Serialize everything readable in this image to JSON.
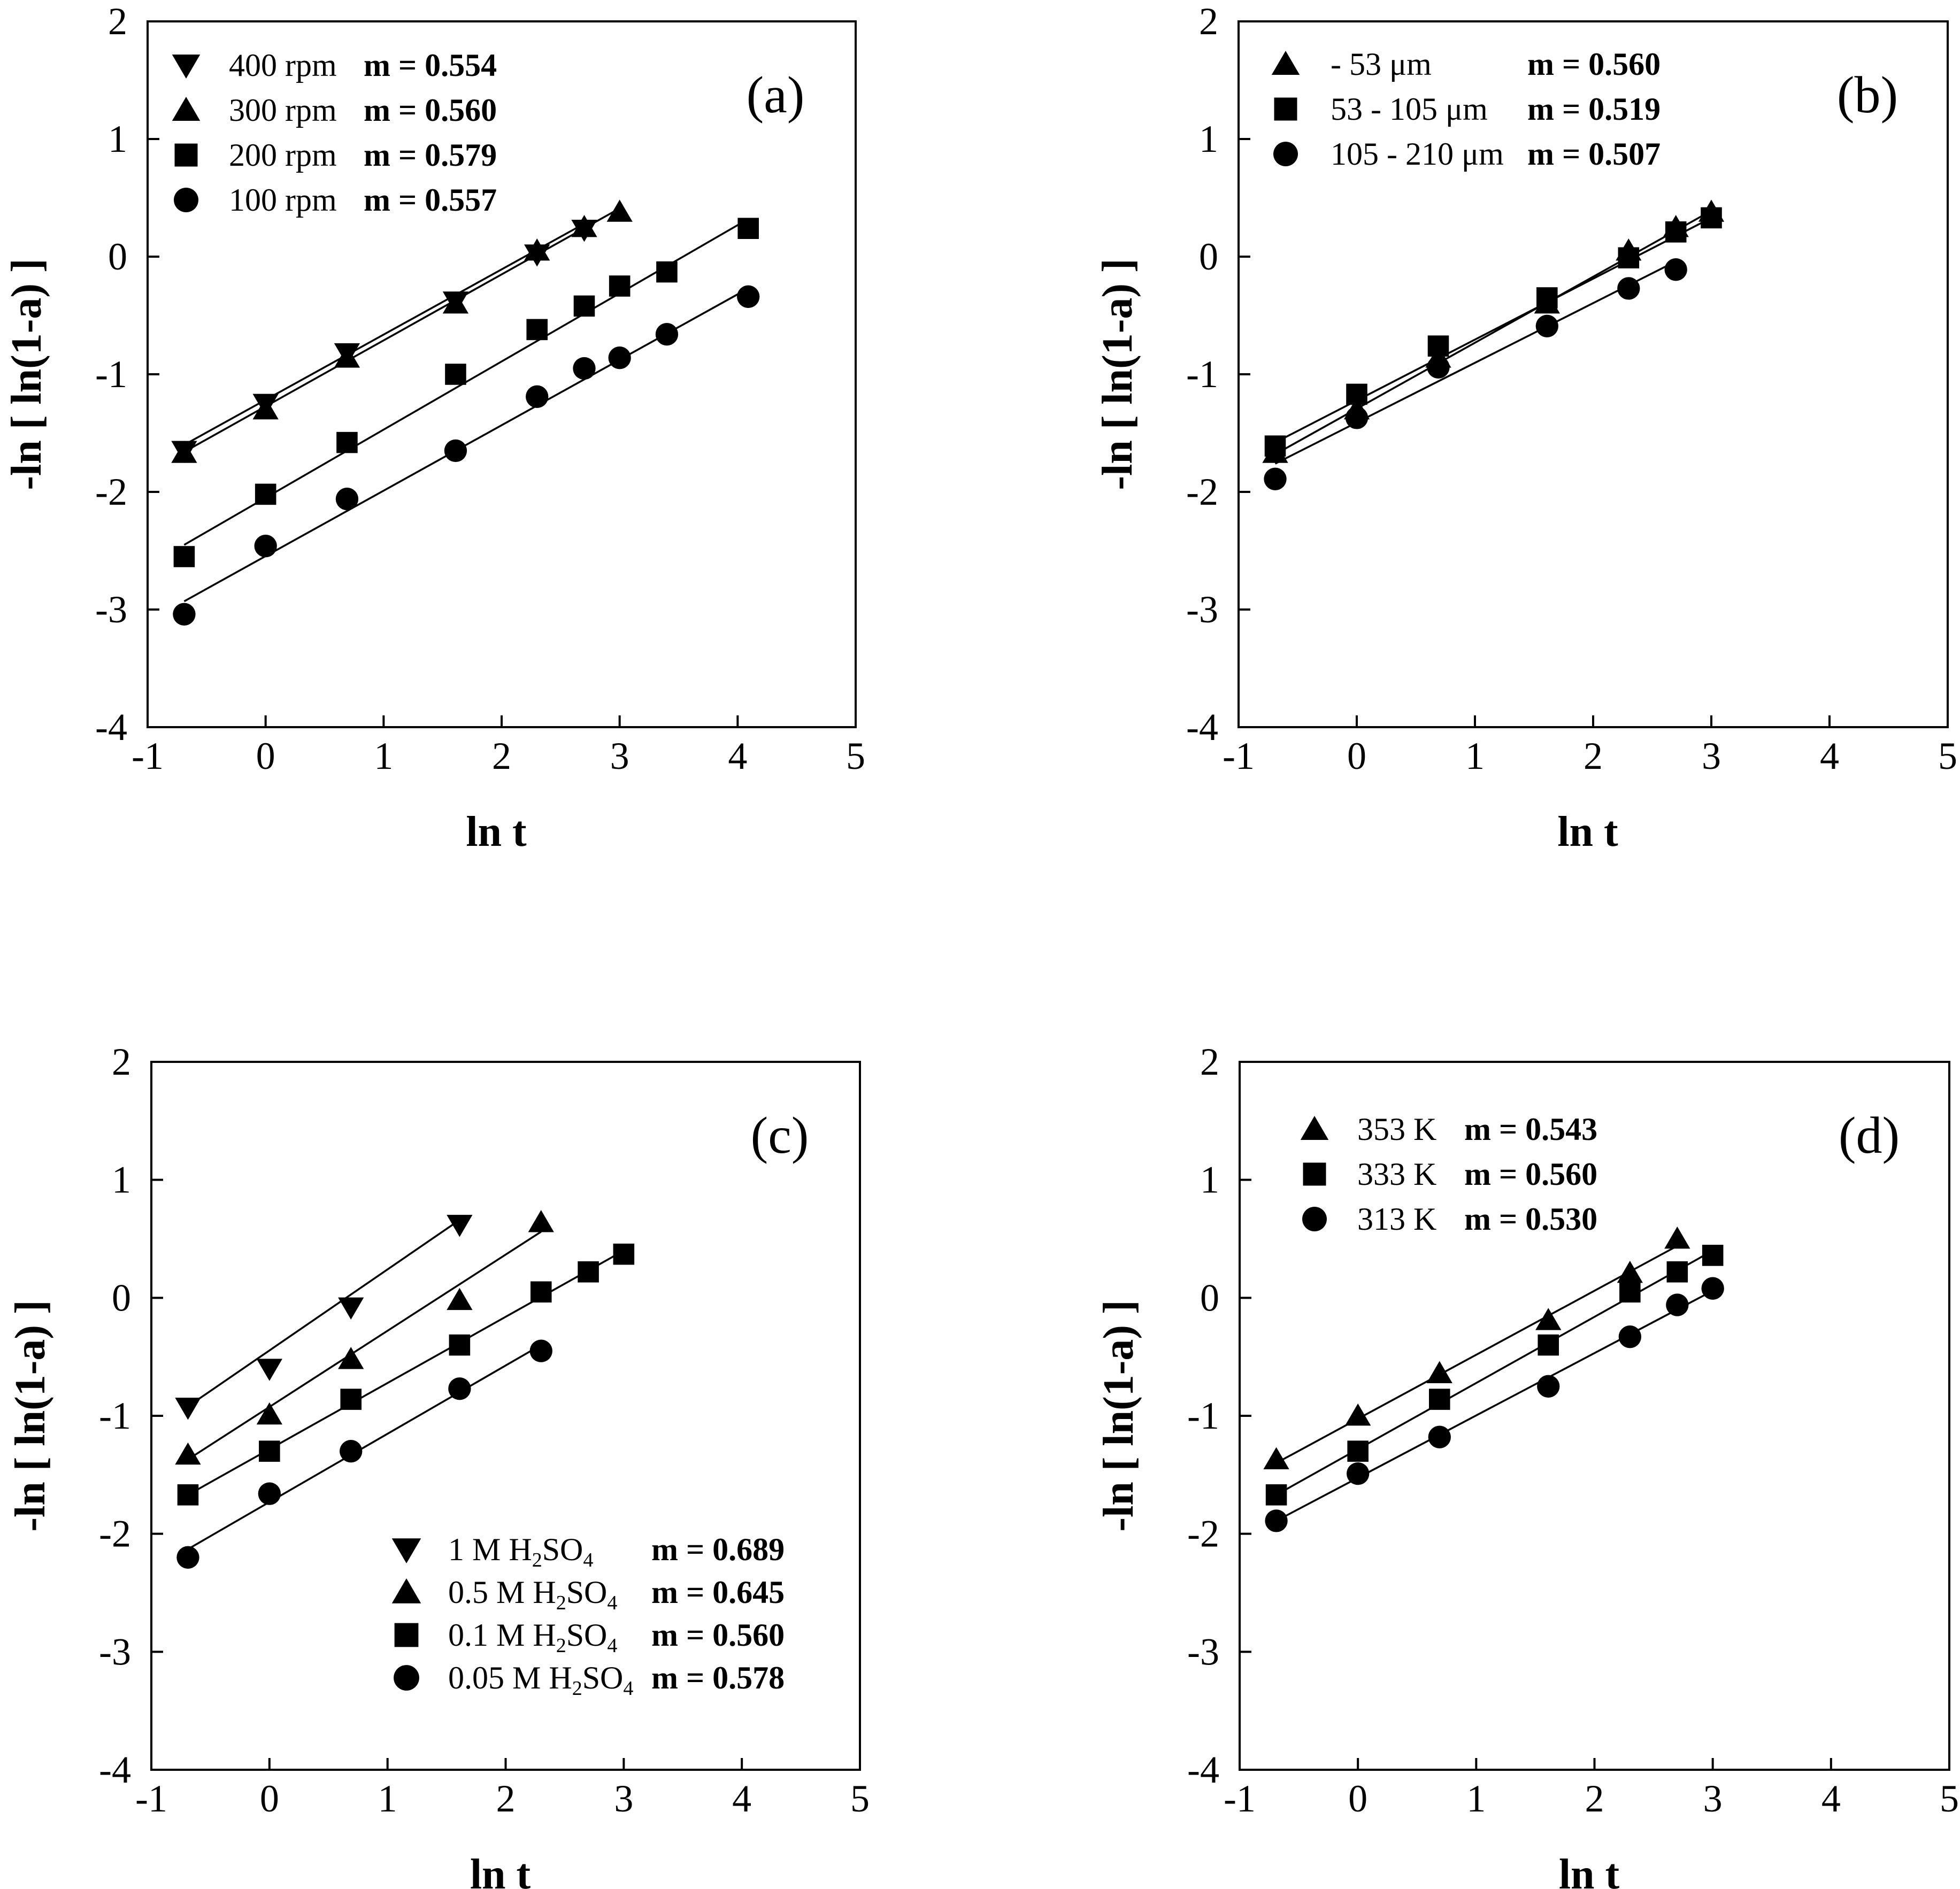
{
  "figure": {
    "axis_x_label": "ln t",
    "axis_y_label": "-ln [ ln(1-a) ]"
  },
  "chart_data": [
    {
      "type": "scatter",
      "panel_label": "(a)",
      "xlabel": "ln t",
      "ylabel": "-ln [ ln(1-a) ]",
      "xlim": [
        -1,
        5
      ],
      "ylim": [
        -4,
        2
      ],
      "xticks": [
        -1,
        0,
        1,
        2,
        3,
        4,
        5
      ],
      "yticks": [
        -4,
        -3,
        -2,
        -1,
        0,
        1,
        2
      ],
      "legend_position": "top-left",
      "series": [
        {
          "name": "400 rpm",
          "m_text": "m = 0.554",
          "marker": "triangle-down",
          "x": [
            -0.69,
            0,
            0.69,
            1.61,
            2.3,
            2.7
          ],
          "y": [
            -1.65,
            -1.25,
            -0.82,
            -0.38,
            0.02,
            0.23
          ],
          "fit": {
            "x0": -0.69,
            "y0": -1.6,
            "x1": 2.7,
            "y1": 0.28
          }
        },
        {
          "name": "300 rpm",
          "m_text": "m = 0.560",
          "marker": "triangle-up",
          "x": [
            -0.69,
            0,
            0.69,
            1.61,
            2.3,
            2.7,
            3.0
          ],
          "y": [
            -1.67,
            -1.3,
            -0.86,
            -0.4,
            0.05,
            0.25,
            0.38
          ],
          "fit": {
            "x0": -0.69,
            "y0": -1.66,
            "x1": 3.0,
            "y1": 0.41
          }
        },
        {
          "name": "200 rpm",
          "m_text": "m = 0.579",
          "marker": "square",
          "x": [
            -0.69,
            0,
            0.69,
            1.61,
            2.3,
            2.7,
            3.0,
            3.4,
            4.09
          ],
          "y": [
            -2.55,
            -2.02,
            -1.58,
            -1.0,
            -0.62,
            -0.42,
            -0.25,
            -0.13,
            0.24
          ],
          "fit": {
            "x0": -0.69,
            "y0": -2.45,
            "x1": 4.09,
            "y1": 0.32
          }
        },
        {
          "name": "100 rpm",
          "m_text": "m = 0.557",
          "marker": "circle",
          "x": [
            -0.69,
            0,
            0.69,
            1.61,
            2.3,
            2.7,
            3.0,
            3.4,
            4.09
          ],
          "y": [
            -3.04,
            -2.46,
            -2.06,
            -1.65,
            -1.19,
            -0.95,
            -0.86,
            -0.66,
            -0.34
          ],
          "fit": {
            "x0": -0.69,
            "y0": -2.93,
            "x1": 4.09,
            "y1": -0.27
          }
        }
      ]
    },
    {
      "type": "scatter",
      "panel_label": "(b)",
      "xlabel": "ln t",
      "ylabel": "-ln [ ln(1-a) ]",
      "xlim": [
        -1,
        5
      ],
      "ylim": [
        -4,
        2
      ],
      "xticks": [
        -1,
        0,
        1,
        2,
        3,
        4,
        5
      ],
      "yticks": [
        -4,
        -3,
        -2,
        -1,
        0,
        1,
        2
      ],
      "legend_position": "top-left",
      "series": [
        {
          "name": "- 53 μm",
          "m_text": "m = 0.560",
          "marker": "triangle-up",
          "x": [
            -0.69,
            0,
            0.69,
            1.61,
            2.3,
            2.7,
            3.0
          ],
          "y": [
            -1.67,
            -1.3,
            -0.86,
            -0.4,
            0.05,
            0.25,
            0.38
          ],
          "fit": {
            "x0": -0.69,
            "y0": -1.68,
            "x1": 3.0,
            "y1": 0.39
          }
        },
        {
          "name": "53 - 105 μm",
          "m_text": "m = 0.519",
          "marker": "square",
          "x": [
            -0.69,
            0,
            0.69,
            1.61,
            2.3,
            2.7,
            3.0
          ],
          "y": [
            -1.61,
            -1.17,
            -0.76,
            -0.35,
            -0.01,
            0.21,
            0.33
          ],
          "fit": {
            "x0": -0.69,
            "y0": -1.58,
            "x1": 3.0,
            "y1": 0.33
          }
        },
        {
          "name": "105 - 210 μm",
          "m_text": "m = 0.507",
          "marker": "circle",
          "x": [
            -0.69,
            0,
            0.69,
            1.61,
            2.3,
            2.7
          ],
          "y": [
            -1.89,
            -1.37,
            -0.94,
            -0.59,
            -0.27,
            -0.11
          ],
          "fit": {
            "x0": -0.69,
            "y0": -1.76,
            "x1": 2.7,
            "y1": -0.04
          }
        }
      ]
    },
    {
      "type": "scatter",
      "panel_label": "(c)",
      "xlabel": "ln t",
      "ylabel": "-ln [ ln(1-a) ]",
      "xlim": [
        -1,
        5
      ],
      "ylim": [
        -4,
        2
      ],
      "xticks": [
        -1,
        0,
        1,
        2,
        3,
        4,
        5
      ],
      "yticks": [
        -4,
        -3,
        -2,
        -1,
        0,
        1,
        2
      ],
      "legend_position": "bottom-center",
      "series": [
        {
          "name": "1 M H",
          "sub1": "2",
          "mid": "SO",
          "sub2": "4",
          "m_text": "m = 0.689",
          "marker": "triangle-down",
          "x": [
            -0.69,
            0,
            0.69,
            1.61
          ],
          "y": [
            -0.93,
            -0.6,
            -0.08,
            0.62
          ],
          "fit": {
            "x0": -0.69,
            "y0": -0.92,
            "x1": 1.61,
            "y1": 0.66
          }
        },
        {
          "name": "0.5 M H",
          "sub1": "2",
          "mid": "SO",
          "sub2": "4",
          "m_text": "m = 0.645",
          "marker": "triangle-up",
          "x": [
            -0.69,
            0,
            0.69,
            1.61,
            2.3
          ],
          "y": [
            -1.33,
            -0.99,
            -0.52,
            -0.02,
            0.64
          ],
          "fit": {
            "x0": -0.69,
            "y0": -1.37,
            "x1": 2.3,
            "y1": 0.56
          }
        },
        {
          "name": "0.1 M H",
          "sub1": "2",
          "mid": "SO",
          "sub2": "4",
          "m_text": "m = 0.560",
          "marker": "square",
          "x": [
            -0.69,
            0,
            0.69,
            1.61,
            2.3,
            2.7,
            3.0
          ],
          "y": [
            -1.67,
            -1.3,
            -0.86,
            -0.4,
            0.05,
            0.22,
            0.37
          ],
          "fit": {
            "x0": -0.69,
            "y0": -1.67,
            "x1": 3.0,
            "y1": 0.4
          }
        },
        {
          "name": "0.05 M H",
          "sub1": "2",
          "mid": "SO",
          "sub2": "4",
          "m_text": "m = 0.578",
          "marker": "circle",
          "x": [
            -0.69,
            0,
            0.69,
            1.61,
            2.3
          ],
          "y": [
            -2.2,
            -1.66,
            -1.3,
            -0.77,
            -0.45
          ],
          "fit": {
            "x0": -0.69,
            "y0": -2.13,
            "x1": 2.3,
            "y1": -0.4
          }
        }
      ]
    },
    {
      "type": "scatter",
      "panel_label": "(d)",
      "xlabel": "ln t",
      "ylabel": "-ln [ ln(1-a) ]",
      "xlim": [
        -1,
        5
      ],
      "ylim": [
        -4,
        2
      ],
      "xticks": [
        -1,
        0,
        1,
        2,
        3,
        4,
        5
      ],
      "yticks": [
        -4,
        -3,
        -2,
        -1,
        0,
        1,
        2
      ],
      "legend_position": "top-left",
      "series": [
        {
          "name": "353 K",
          "m_text": "m = 0.543",
          "marker": "triangle-up",
          "x": [
            -0.69,
            0,
            0.69,
            1.61,
            2.3,
            2.7
          ],
          "y": [
            -1.37,
            -1.0,
            -0.64,
            -0.19,
            0.21,
            0.5
          ],
          "fit": {
            "x0": -0.69,
            "y0": -1.4,
            "x1": 2.7,
            "y1": 0.44
          }
        },
        {
          "name": "333 K",
          "m_text": "m = 0.560",
          "marker": "square",
          "x": [
            -0.69,
            0,
            0.69,
            1.61,
            2.3,
            2.7,
            3.0
          ],
          "y": [
            -1.67,
            -1.3,
            -0.86,
            -0.4,
            0.05,
            0.22,
            0.36
          ],
          "fit": {
            "x0": -0.69,
            "y0": -1.67,
            "x1": 3.0,
            "y1": 0.4
          }
        },
        {
          "name": "313 K",
          "m_text": "m = 0.530",
          "marker": "circle",
          "x": [
            -0.69,
            0,
            0.69,
            1.61,
            2.3,
            2.7,
            3.0
          ],
          "y": [
            -1.89,
            -1.49,
            -1.18,
            -0.75,
            -0.33,
            -0.06,
            0.08
          ],
          "fit": {
            "x0": -0.69,
            "y0": -1.89,
            "x1": 3.0,
            "y1": 0.06
          }
        }
      ]
    }
  ]
}
